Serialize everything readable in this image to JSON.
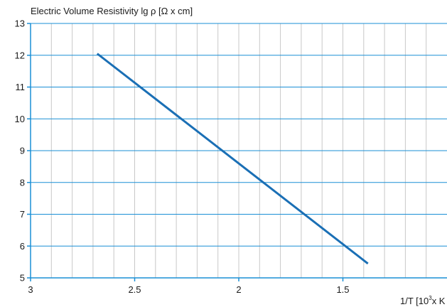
{
  "chart_data": {
    "type": "line",
    "ylabel": "Electric Volume Resistivity lg ρ [Ω x cm]",
    "xlabel_prefix": "1/T [10",
    "xlabel_superscript": "3",
    "xlabel_suffix": "x K",
    "xlim": [
      3.0,
      1.0
    ],
    "ylim": [
      5,
      13
    ],
    "x_ticks": [
      3,
      2.5,
      2,
      1.5
    ],
    "x_tick_labels": [
      "3",
      "2.5",
      "2",
      "1.5"
    ],
    "y_ticks": [
      5,
      6,
      7,
      8,
      9,
      10,
      11,
      12,
      13
    ],
    "y_tick_labels": [
      "5",
      "6",
      "7",
      "8",
      "9",
      "10",
      "11",
      "12",
      "13"
    ],
    "x_minor_step": 0.1,
    "grid": true,
    "series": [
      {
        "x": [
          2.68,
          1.38
        ],
        "y": [
          12.05,
          5.45
        ],
        "color": "#1a6fb5"
      }
    ],
    "colors": {
      "axis": "#1a8fd6",
      "grid": "#c8c8c8",
      "line": "#1a6fb5"
    }
  }
}
